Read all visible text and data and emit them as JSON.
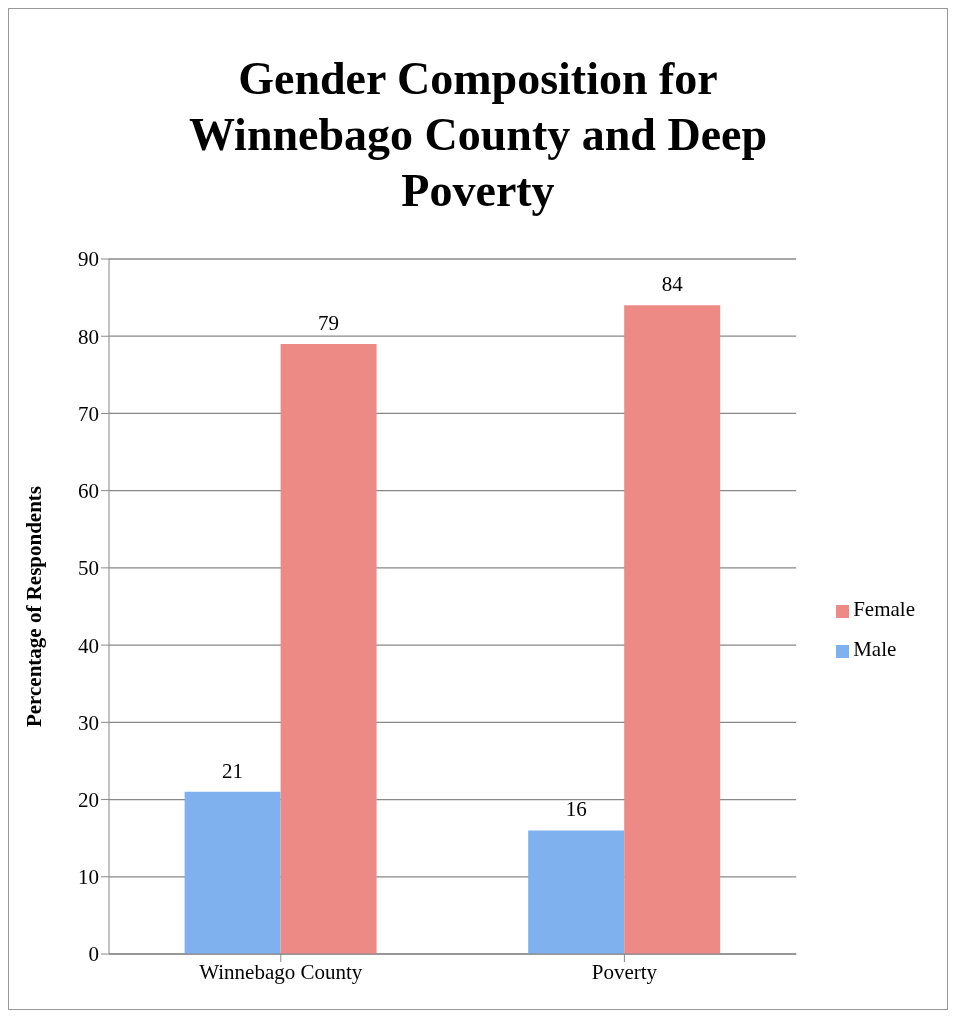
{
  "chart_data": {
    "type": "bar",
    "title": "Gender Composition for Winnebago County and Deep Poverty",
    "ylabel": "Percentage of Respondents",
    "categories": [
      "Winnebago County",
      "Poverty"
    ],
    "series": [
      {
        "name": "Male",
        "color": "#7eb1ee",
        "values": [
          21,
          16
        ]
      },
      {
        "name": "Female",
        "color": "#ee8a86",
        "values": [
          79,
          84
        ]
      }
    ],
    "ylim": [
      0,
      90
    ],
    "yticks": [
      0,
      10,
      20,
      30,
      40,
      50,
      60,
      70,
      80,
      90
    ],
    "grid": "y",
    "legend": "right",
    "data_labels": true
  }
}
